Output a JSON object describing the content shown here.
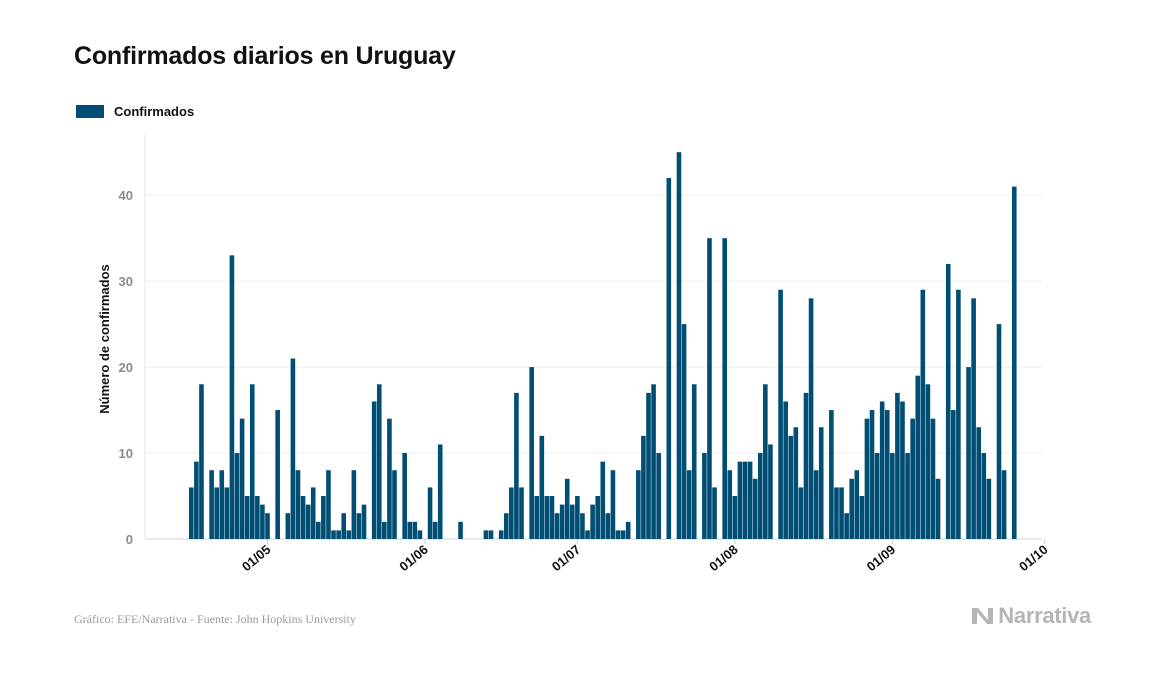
{
  "header": {
    "title": "Confirmados diarios en Uruguay"
  },
  "legend": {
    "label": "Confirmados",
    "color": "#004e74"
  },
  "footer": {
    "source": "Gráfico: EFE/Narrativa - Fuente: John Hopkins University",
    "brand": "Narrativa"
  },
  "chart_data": {
    "type": "bar",
    "title": "Confirmados diarios en Uruguay",
    "ylabel": "Número de confirmados",
    "xlabel": "",
    "ylim": [
      0,
      47
    ],
    "yticks": [
      0,
      10,
      20,
      30,
      40
    ],
    "x_ticks": [
      "01/05",
      "01/06",
      "01/07",
      "01/08",
      "01/09",
      "01/10"
    ],
    "x_tick_day_index": [
      15,
      46,
      76,
      107,
      138,
      168
    ],
    "start_date": "16/04",
    "grid": true,
    "legend_position": "top-left",
    "series": [
      {
        "name": "Confirmados",
        "color": "#004e74",
        "values": [
          6,
          9,
          18,
          0,
          8,
          6,
          8,
          6,
          33,
          10,
          14,
          5,
          18,
          5,
          4,
          3,
          0,
          15,
          0,
          3,
          21,
          8,
          5,
          4,
          6,
          2,
          5,
          8,
          1,
          1,
          3,
          1,
          8,
          3,
          4,
          0,
          16,
          18,
          2,
          14,
          8,
          0,
          10,
          2,
          2,
          1,
          0,
          6,
          2,
          11,
          0,
          0,
          0,
          2,
          0,
          0,
          0,
          0,
          1,
          1,
          0,
          1,
          3,
          6,
          17,
          6,
          0,
          20,
          5,
          12,
          5,
          5,
          3,
          4,
          7,
          4,
          5,
          3,
          1,
          4,
          5,
          9,
          3,
          8,
          1,
          1,
          2,
          0,
          8,
          12,
          17,
          18,
          10,
          0,
          42,
          0,
          45,
          25,
          8,
          18,
          0,
          10,
          35,
          6,
          0,
          35,
          8,
          5,
          9,
          9,
          9,
          7,
          10,
          18,
          11,
          0,
          29,
          16,
          12,
          13,
          6,
          17,
          28,
          8,
          13,
          0,
          15,
          6,
          6,
          3,
          7,
          8,
          5,
          14,
          15,
          10,
          16,
          15,
          10,
          17,
          16,
          10,
          14,
          19,
          29,
          18,
          14,
          7,
          0,
          32,
          15,
          29,
          0,
          20,
          28,
          13,
          10,
          7,
          0,
          25,
          8,
          0,
          41
        ]
      }
    ]
  }
}
